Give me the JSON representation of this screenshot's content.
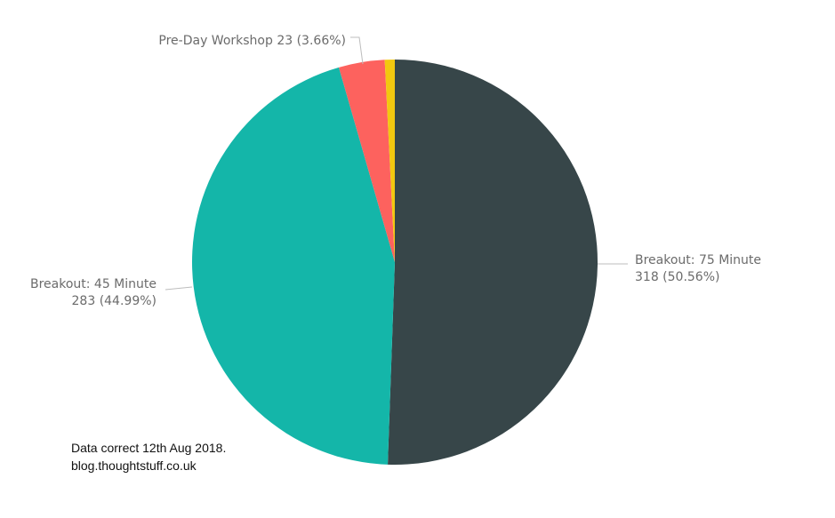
{
  "chart_data": {
    "type": "pie",
    "slices": [
      {
        "label": "Breakout: 75 Minute",
        "value": 318,
        "percent_text": "318 (50.56%)",
        "color": "#374649"
      },
      {
        "label": "Breakout: 45 Minute",
        "value": 283,
        "percent_text": "283 (44.99%)",
        "color": "#14B6A9"
      },
      {
        "label": "Pre-Day Workshop",
        "value": 23,
        "percent_text": "23 (3.66%)",
        "color": "#FD625E"
      },
      {
        "label": "",
        "value": 5,
        "percent_text": "",
        "color": "#F2C80F"
      }
    ],
    "labels": {
      "breakout75_line1": "Breakout: 75 Minute",
      "breakout75_line2": "318 (50.56%)",
      "breakout45_line1": "Breakout: 45 Minute",
      "breakout45_line2": "283 (44.99%)",
      "preday": "Pre-Day Workshop 23 (3.66%)"
    },
    "leader_color": "#bdbdbd",
    "label_color": "#6b6b6b"
  },
  "footnote": {
    "line1": "Data correct 12th Aug 2018.",
    "line2": "blog.thoughtstuff.co.uk"
  }
}
